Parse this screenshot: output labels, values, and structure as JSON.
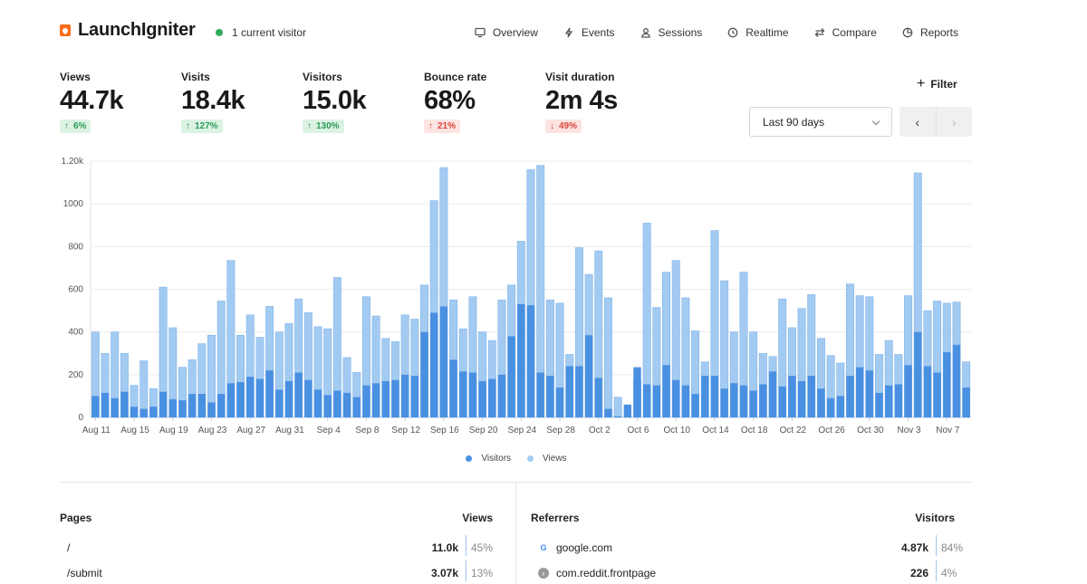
{
  "app": {
    "name": "LaunchIgniter",
    "live_visitors": "1 current visitor"
  },
  "nav": [
    {
      "label": "Overview",
      "icon": "monitor-icon"
    },
    {
      "label": "Events",
      "icon": "bolt-icon"
    },
    {
      "label": "Sessions",
      "icon": "user-icon"
    },
    {
      "label": "Realtime",
      "icon": "clock-icon"
    },
    {
      "label": "Compare",
      "icon": "arrows-icon"
    },
    {
      "label": "Reports",
      "icon": "pie-icon"
    }
  ],
  "metrics": [
    {
      "label": "Views",
      "value": "44.7k",
      "change": "6%",
      "direction": "up"
    },
    {
      "label": "Visits",
      "value": "18.4k",
      "change": "127%",
      "direction": "up"
    },
    {
      "label": "Visitors",
      "value": "15.0k",
      "change": "130%",
      "direction": "up"
    },
    {
      "label": "Bounce rate",
      "value": "68%",
      "change": "21%",
      "direction": "up-bad"
    },
    {
      "label": "Visit duration",
      "value": "2m 4s",
      "change": "49%",
      "direction": "down"
    }
  ],
  "controls": {
    "filter_label": "Filter",
    "date_range": "Last 90 days"
  },
  "colors": {
    "visitors": "#4a90e2",
    "views": "#a3cbf2",
    "positive": "#2c9a55",
    "negative": "#d6453c",
    "brand": "#f76d1a"
  },
  "chart_data": {
    "type": "bar",
    "ylim": [
      0,
      1200
    ],
    "yticks": [
      "0",
      "200",
      "400",
      "600",
      "800",
      "1000",
      "1.20k"
    ],
    "tick_labels": [
      "Aug 11",
      "Aug 15",
      "Aug 19",
      "Aug 23",
      "Aug 27",
      "Aug 31",
      "Sep 4",
      "Sep 8",
      "Sep 12",
      "Sep 16",
      "Sep 20",
      "Sep 24",
      "Sep 28",
      "Oct 2",
      "Oct 6",
      "Oct 10",
      "Oct 14",
      "Oct 18",
      "Oct 22",
      "Oct 26",
      "Oct 30",
      "Nov 3",
      "Nov 7"
    ],
    "series": [
      {
        "name": "Visitors",
        "values": [
          100,
          115,
          90,
          120,
          50,
          40,
          50,
          120,
          85,
          80,
          110,
          110,
          70,
          110,
          160,
          165,
          190,
          180,
          220,
          130,
          170,
          210,
          175,
          130,
          105,
          125,
          115,
          95,
          150,
          160,
          170,
          175,
          200,
          195,
          400,
          490,
          520,
          270,
          215,
          210,
          170,
          180,
          200,
          380,
          530,
          525,
          210,
          195,
          140,
          240,
          240,
          385,
          185,
          40,
          5,
          60,
          235,
          155,
          150,
          245,
          175,
          150,
          110,
          195,
          195,
          135,
          160,
          150,
          125,
          155,
          215,
          145,
          195,
          170,
          195,
          135,
          90,
          100,
          195,
          235,
          220,
          115,
          150,
          155,
          245,
          400,
          240,
          210,
          305,
          340,
          140
        ]
      },
      {
        "name": "Views",
        "values": [
          400,
          300,
          400,
          300,
          150,
          265,
          135,
          610,
          420,
          235,
          270,
          345,
          385,
          545,
          735,
          385,
          480,
          375,
          520,
          400,
          440,
          555,
          490,
          425,
          415,
          655,
          280,
          210,
          565,
          475,
          370,
          355,
          480,
          460,
          620,
          1015,
          1170,
          550,
          415,
          565,
          400,
          360,
          550,
          620,
          825,
          1160,
          1180,
          550,
          535,
          295,
          795,
          670,
          780,
          560,
          95,
          5,
          175,
          910,
          515,
          680,
          735,
          560,
          405,
          260,
          875,
          640,
          400,
          680,
          400,
          300,
          285,
          555,
          420,
          510,
          575,
          370,
          290,
          255,
          625,
          570,
          565,
          295,
          360,
          295,
          570,
          1145,
          500,
          545,
          535,
          540,
          260
        ]
      }
    ]
  },
  "pages_panel": {
    "title": "Pages",
    "metric": "Views",
    "rows": [
      {
        "label": "/",
        "value": "11.0k",
        "pct": "45%",
        "fraction": 0.45
      },
      {
        "label": "/submit",
        "value": "3.07k",
        "pct": "13%",
        "fraction": 0.13
      }
    ]
  },
  "referrers_panel": {
    "title": "Referrers",
    "metric": "Visitors",
    "rows": [
      {
        "label": "google.com",
        "icon": "google-icon",
        "value": "4.87k",
        "pct": "84%",
        "fraction": 0.84
      },
      {
        "label": "com.reddit.frontpage",
        "icon": "reddit-icon",
        "value": "226",
        "pct": "4%",
        "fraction": 0.04
      }
    ]
  }
}
